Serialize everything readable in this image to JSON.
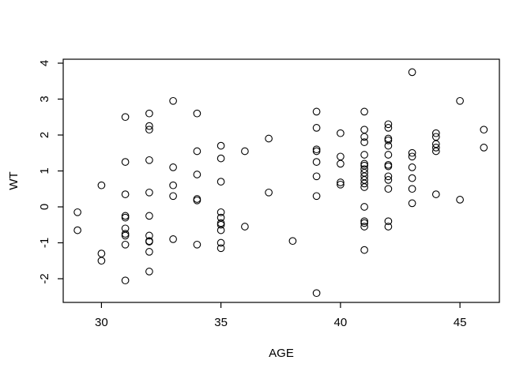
{
  "figure": {
    "background": "#ffffff",
    "foreground": "#000000"
  },
  "chart_data": {
    "type": "scatter",
    "title": "",
    "xlabel": "AGE",
    "ylabel": "WT",
    "x_ticks": [
      30,
      35,
      40,
      45
    ],
    "y_ticks": [
      -2,
      -1,
      0,
      1,
      2,
      3,
      4
    ],
    "xlim": [
      28.4,
      46.65
    ],
    "ylim": [
      -2.66,
      4.11
    ],
    "grid": false,
    "legend": "none",
    "box": "full",
    "marker": {
      "shape": "open-circle",
      "radius_px": 4.3,
      "color": "#000000"
    },
    "points": [
      [
        29,
        -0.15
      ],
      [
        29,
        -0.65
      ],
      [
        30,
        0.6
      ],
      [
        30,
        -1.3
      ],
      [
        30,
        -1.5
      ],
      [
        31,
        2.5
      ],
      [
        31,
        1.25
      ],
      [
        31,
        0.35
      ],
      [
        31,
        -0.25
      ],
      [
        31,
        -0.3
      ],
      [
        31,
        -0.6
      ],
      [
        31,
        -0.75
      ],
      [
        31,
        -0.8
      ],
      [
        31,
        -1.05
      ],
      [
        31,
        -2.05
      ],
      [
        32,
        2.6
      ],
      [
        32,
        2.25
      ],
      [
        32,
        2.15
      ],
      [
        32,
        1.3
      ],
      [
        32,
        0.4
      ],
      [
        32,
        -0.25
      ],
      [
        32,
        -0.8
      ],
      [
        32,
        -0.95
      ],
      [
        32,
        -0.97
      ],
      [
        32,
        -1.25
      ],
      [
        32,
        -1.8
      ],
      [
        33,
        2.95
      ],
      [
        33,
        1.1
      ],
      [
        33,
        0.6
      ],
      [
        33,
        0.3
      ],
      [
        33,
        -0.9
      ],
      [
        34,
        2.6
      ],
      [
        34,
        1.55
      ],
      [
        34,
        0.9
      ],
      [
        34,
        0.22
      ],
      [
        34,
        0.18
      ],
      [
        34,
        -1.05
      ],
      [
        35,
        1.7
      ],
      [
        35,
        1.35
      ],
      [
        35,
        0.7
      ],
      [
        35,
        -0.15
      ],
      [
        35,
        -0.3
      ],
      [
        35,
        -0.45
      ],
      [
        35,
        -0.5
      ],
      [
        35,
        -0.65
      ],
      [
        35,
        -1.0
      ],
      [
        35,
        -1.15
      ],
      [
        36,
        1.55
      ],
      [
        36,
        -0.55
      ],
      [
        37,
        1.9
      ],
      [
        37,
        0.4
      ],
      [
        38,
        -0.95
      ],
      [
        39,
        2.65
      ],
      [
        39,
        2.2
      ],
      [
        39,
        1.6
      ],
      [
        39,
        1.55
      ],
      [
        39,
        1.25
      ],
      [
        39,
        0.85
      ],
      [
        39,
        0.3
      ],
      [
        39,
        -2.4
      ],
      [
        40,
        2.05
      ],
      [
        40,
        1.4
      ],
      [
        40,
        1.2
      ],
      [
        40,
        0.68
      ],
      [
        40,
        0.62
      ],
      [
        41,
        2.65
      ],
      [
        41,
        2.15
      ],
      [
        41,
        1.95
      ],
      [
        41,
        1.8
      ],
      [
        41,
        1.45
      ],
      [
        41,
        1.2
      ],
      [
        41,
        1.15
      ],
      [
        41,
        1.05
      ],
      [
        41,
        0.95
      ],
      [
        41,
        0.85
      ],
      [
        41,
        0.75
      ],
      [
        41,
        0.65
      ],
      [
        41,
        0.55
      ],
      [
        41,
        0.0
      ],
      [
        41,
        -0.4
      ],
      [
        41,
        -0.45
      ],
      [
        41,
        -0.55
      ],
      [
        41,
        -1.2
      ],
      [
        42,
        2.3
      ],
      [
        42,
        2.2
      ],
      [
        42,
        1.9
      ],
      [
        42,
        1.85
      ],
      [
        42,
        1.7
      ],
      [
        42,
        1.45
      ],
      [
        42,
        1.17
      ],
      [
        42,
        1.13
      ],
      [
        42,
        0.85
      ],
      [
        42,
        0.75
      ],
      [
        42,
        0.5
      ],
      [
        42,
        -0.4
      ],
      [
        42,
        -0.55
      ],
      [
        43,
        3.75
      ],
      [
        43,
        1.5
      ],
      [
        43,
        1.4
      ],
      [
        43,
        1.1
      ],
      [
        43,
        0.8
      ],
      [
        43,
        0.5
      ],
      [
        43,
        0.1
      ],
      [
        44,
        2.05
      ],
      [
        44,
        1.95
      ],
      [
        44,
        1.75
      ],
      [
        44,
        1.65
      ],
      [
        44,
        1.55
      ],
      [
        44,
        0.35
      ],
      [
        45,
        2.95
      ],
      [
        45,
        0.2
      ],
      [
        46,
        2.15
      ],
      [
        46,
        1.65
      ]
    ]
  }
}
